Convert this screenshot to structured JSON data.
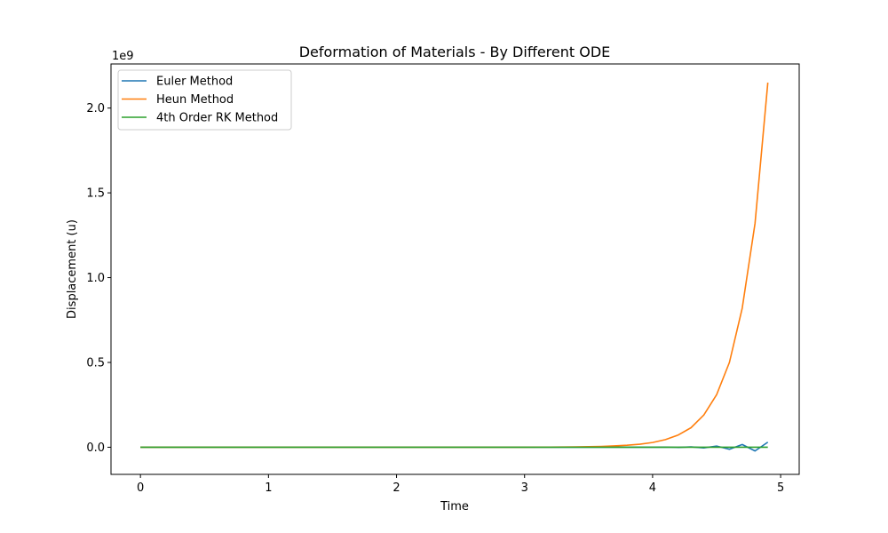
{
  "chart_data": {
    "type": "line",
    "title": "Deformation of Materials - By Different ODE",
    "xlabel": "Time",
    "ylabel": "Displacement (u)",
    "y_offset_label": "1e9",
    "xlim": [
      -0.23,
      5.145
    ],
    "ylim": [
      -0.16,
      2.26
    ],
    "y_units": "x 1e9",
    "x_ticks": [
      0,
      1,
      2,
      3,
      4,
      5
    ],
    "x_tick_labels": [
      "0",
      "1",
      "2",
      "3",
      "4",
      "5"
    ],
    "y_ticks": [
      0,
      0.5,
      1.0,
      1.5,
      2.0
    ],
    "y_tick_labels": [
      "0.0",
      "0.5",
      "1.0",
      "1.5",
      "2.0"
    ],
    "legend_position": "top-left",
    "x": [
      0.0,
      0.1,
      0.2,
      0.3,
      0.4,
      0.5,
      0.6,
      0.7,
      0.8,
      0.9,
      1.0,
      1.1,
      1.2,
      1.3,
      1.4,
      1.5,
      1.6,
      1.7,
      1.8,
      1.9,
      2.0,
      2.1,
      2.2,
      2.3,
      2.4,
      2.5,
      2.6,
      2.7,
      2.8,
      2.9,
      3.0,
      3.1,
      3.2,
      3.3,
      3.4,
      3.5,
      3.6,
      3.7,
      3.8,
      3.9,
      4.0,
      4.1,
      4.2,
      4.3,
      4.4,
      4.5,
      4.6,
      4.7,
      4.8,
      4.9
    ],
    "series": [
      {
        "name": "Euler Method",
        "color": "#1f77b4",
        "values": [
          0,
          0,
          0,
          0,
          0,
          0,
          0,
          0,
          0,
          0,
          0,
          0,
          0,
          0,
          0,
          0,
          0,
          0,
          0,
          0,
          0,
          0,
          0,
          0,
          0,
          0,
          0,
          0,
          0,
          0,
          0,
          0,
          0,
          0,
          0,
          0,
          0,
          0,
          0,
          0,
          0,
          0.0005,
          -0.001,
          0.002,
          -0.004,
          0.007,
          -0.012,
          0.016,
          -0.022,
          0.03
        ]
      },
      {
        "name": "Heun Method",
        "color": "#ff7f0e",
        "values": [
          0,
          0,
          0,
          0,
          0,
          0,
          0,
          0,
          0,
          0,
          0,
          0,
          0,
          0,
          0,
          0,
          0,
          0,
          0,
          0,
          0,
          0,
          0,
          0,
          0,
          0,
          0,
          0,
          0,
          0,
          0.0003,
          0.0006,
          0.0009,
          0.0014,
          0.002,
          0.0035,
          0.005,
          0.008,
          0.012,
          0.018,
          0.028,
          0.045,
          0.072,
          0.115,
          0.19,
          0.31,
          0.5,
          0.82,
          1.32,
          2.15
        ]
      },
      {
        "name": "4th Order RK Method",
        "color": "#2ca02c",
        "values": [
          0,
          0,
          0,
          0,
          0,
          0,
          0,
          0,
          0,
          0,
          0,
          0,
          0,
          0,
          0,
          0,
          0,
          0,
          0,
          0,
          0,
          0,
          0,
          0,
          0,
          0,
          0,
          0,
          0,
          0,
          0,
          0,
          0,
          0,
          0,
          0,
          0,
          0,
          0,
          0,
          0,
          0,
          0,
          0,
          0,
          0,
          0,
          0,
          0,
          0
        ]
      }
    ]
  }
}
